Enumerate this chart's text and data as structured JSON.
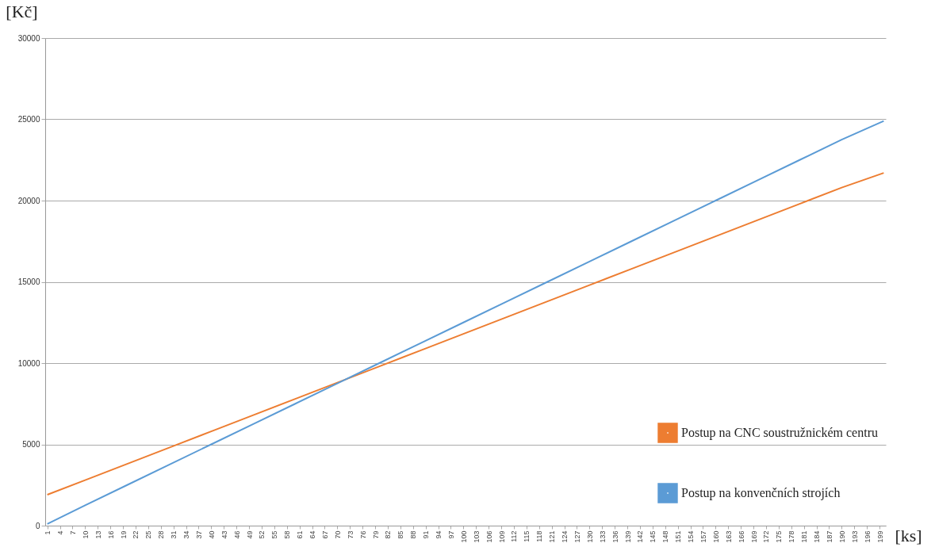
{
  "chart_data": {
    "type": "line",
    "xlabel": "[ks]",
    "ylabel": "[Kč]",
    "x": [
      1,
      10,
      20,
      30,
      40,
      50,
      60,
      70,
      80,
      90,
      100,
      110,
      120,
      130,
      140,
      150,
      160,
      170,
      180,
      190,
      200
    ],
    "series": [
      {
        "name": "Postup na CNC soustružnickém centru",
        "color": "#ed7d31",
        "values": [
          1900,
          2800,
          3800,
          4800,
          5800,
          6800,
          7800,
          8800,
          9800,
          10800,
          11800,
          12800,
          13800,
          14800,
          15800,
          16800,
          17800,
          18800,
          19800,
          20800,
          21700
        ]
      },
      {
        "name": "Postup na konvenčních strojích",
        "color": "#5b9bd5",
        "values": [
          100,
          1250,
          2500,
          3750,
          5000,
          6250,
          7500,
          8750,
          10000,
          11250,
          12500,
          13750,
          15000,
          16250,
          17500,
          18750,
          20000,
          21250,
          22500,
          23750,
          24900
        ]
      }
    ],
    "xlim": [
      0.5,
      200.5
    ],
    "xticks": [
      1,
      4,
      7,
      10,
      13,
      16,
      19,
      22,
      25,
      28,
      31,
      34,
      37,
      40,
      43,
      46,
      49,
      52,
      55,
      58,
      61,
      64,
      67,
      70,
      73,
      76,
      79,
      82,
      85,
      88,
      91,
      94,
      97,
      100,
      103,
      106,
      109,
      112,
      115,
      118,
      121,
      124,
      127,
      130,
      133,
      136,
      139,
      142,
      145,
      148,
      151,
      154,
      157,
      160,
      163,
      166,
      169,
      172,
      175,
      178,
      181,
      184,
      187,
      190,
      193,
      196,
      199
    ],
    "ylim": [
      0,
      30000
    ],
    "yticks": [
      0,
      5000,
      10000,
      15000,
      20000,
      25000,
      30000
    ],
    "grid": "y",
    "legend": "bottom right",
    "marker": "none",
    "line_style": "solid"
  }
}
